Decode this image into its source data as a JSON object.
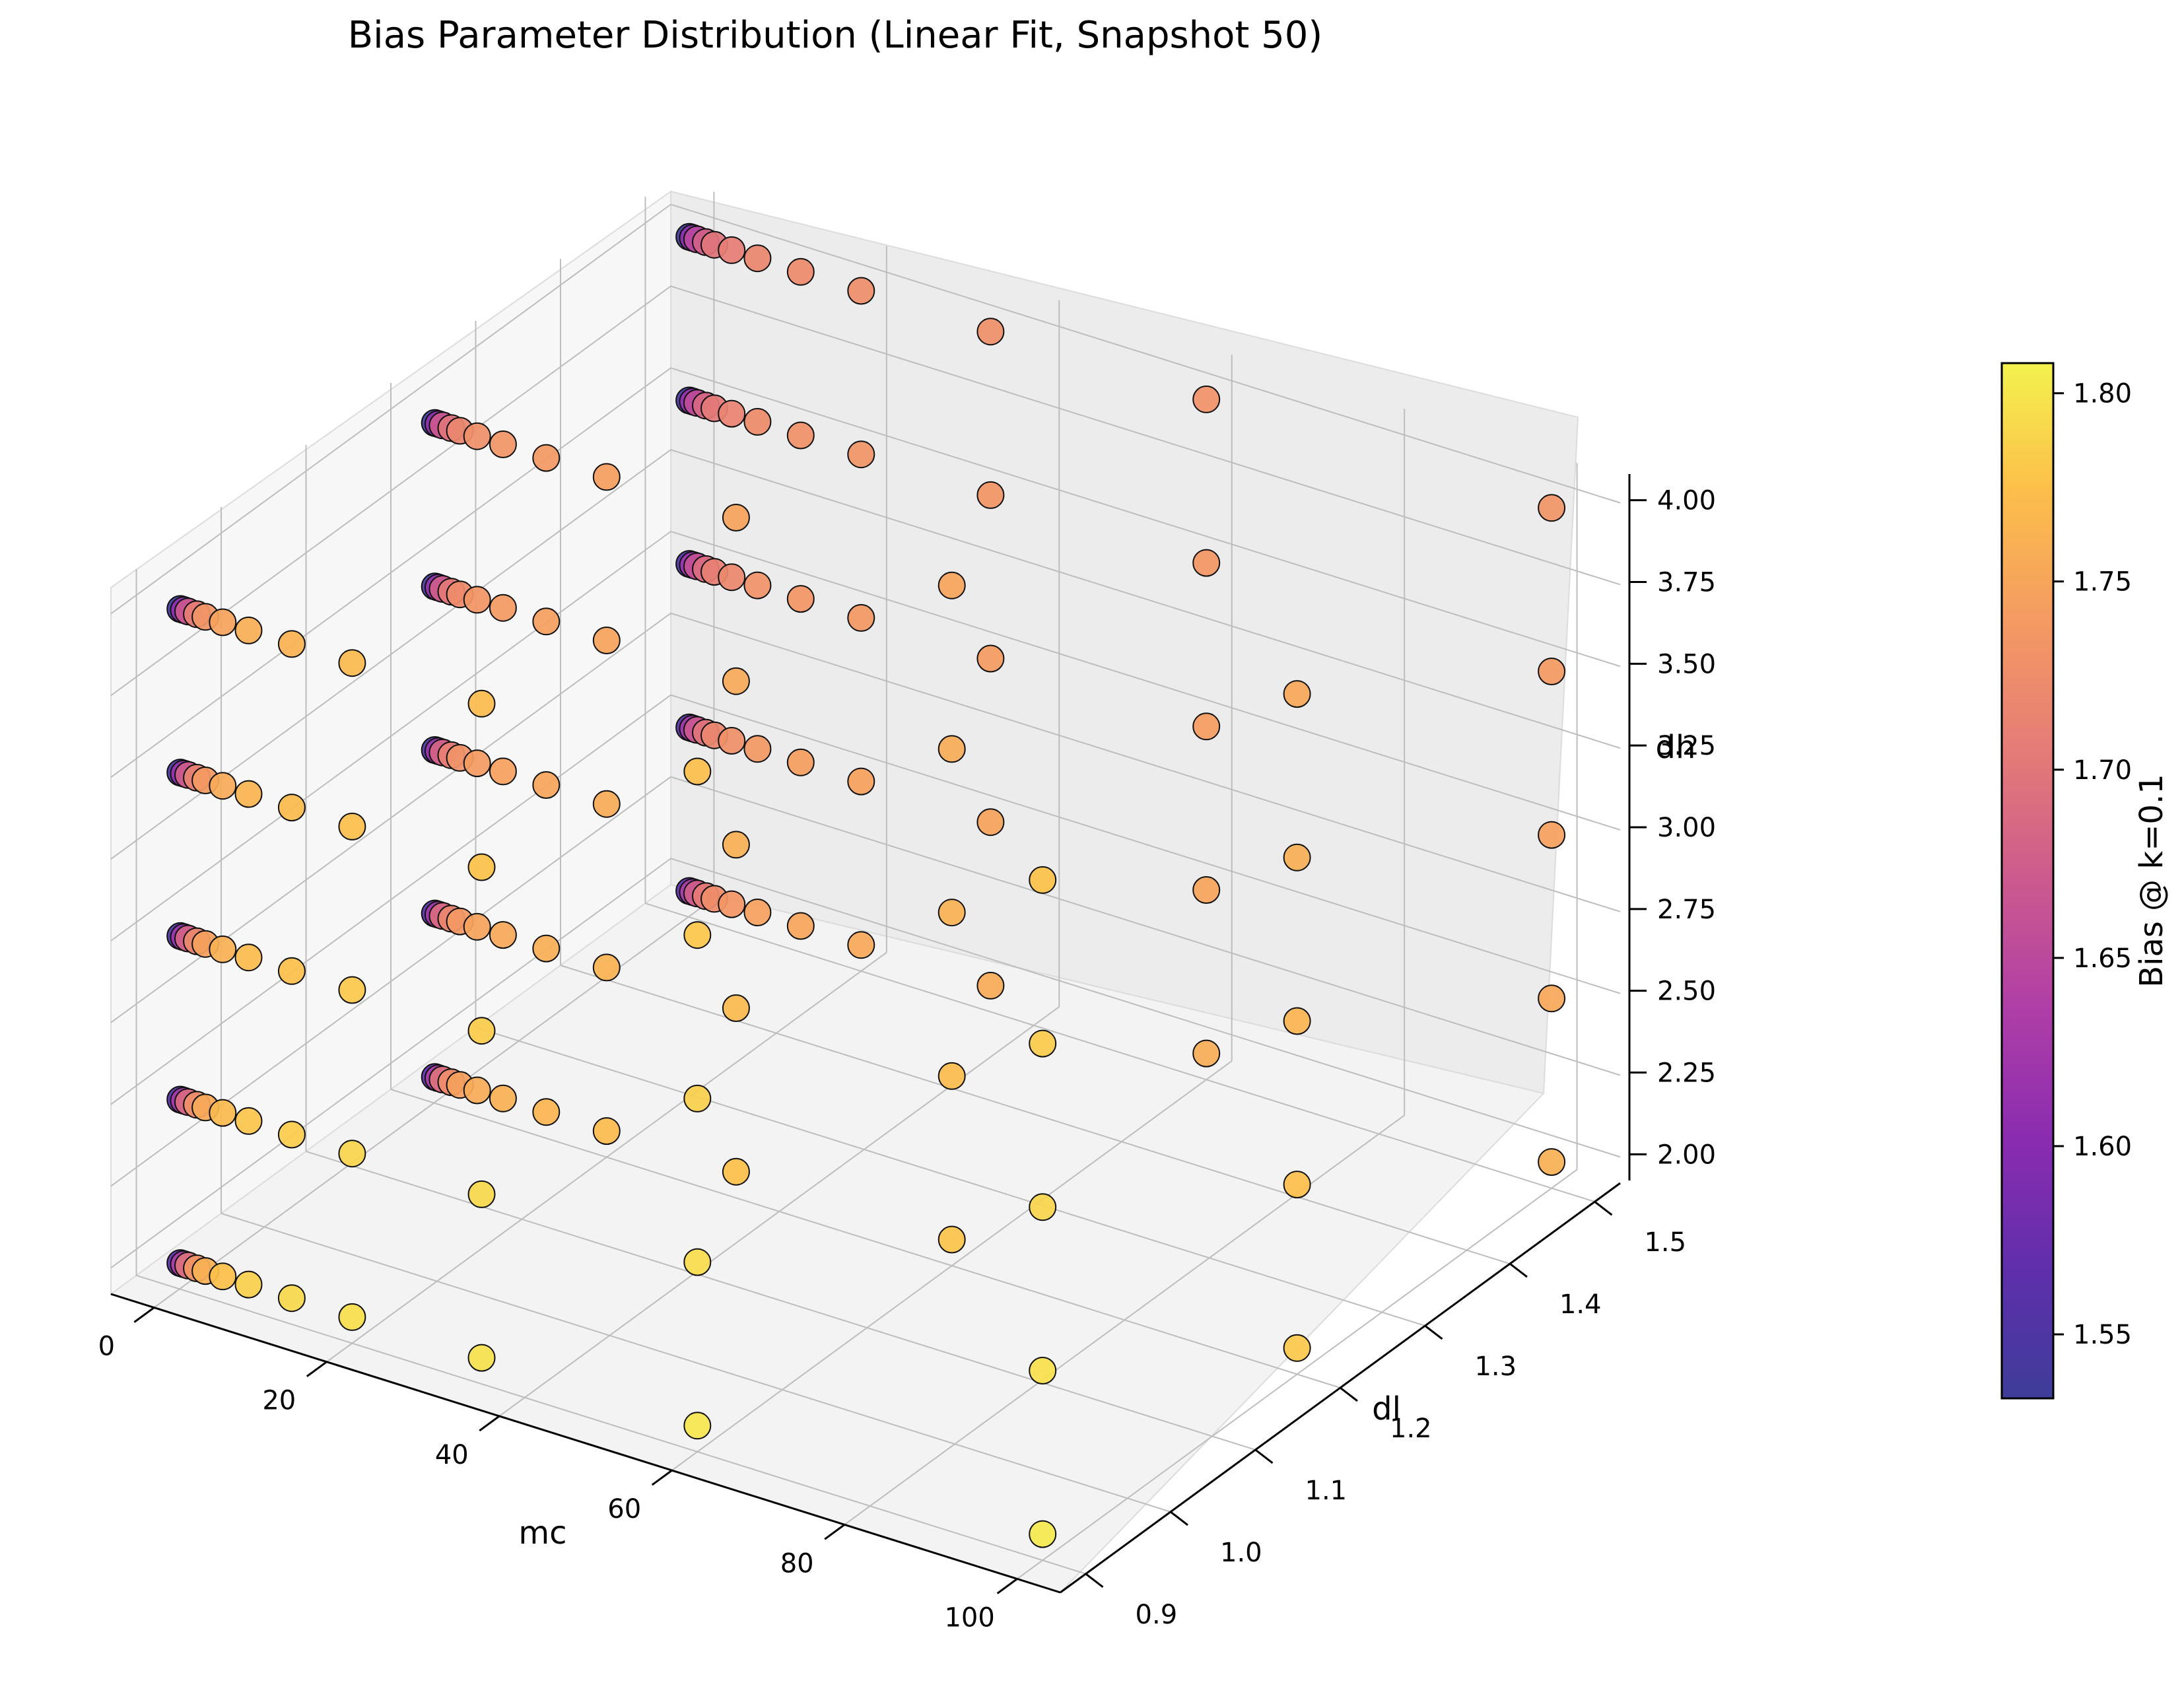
{
  "chart_data": {
    "type": "scatter",
    "title": "Bias Parameter Distribution (Linear Fit, Snapshot 50)",
    "xlabel": "mc",
    "ylabel": "dl",
    "zlabel": "dh",
    "colorbar_label": "Bias @ k=0.1",
    "colormap": "plasma",
    "xlim": [
      -5,
      105
    ],
    "ylim": [
      0.87,
      1.53
    ],
    "zlim": [
      1.92,
      4.08
    ],
    "xticks": [
      "0",
      "20",
      "40",
      "60",
      "80",
      "100"
    ],
    "yticks": [
      "0.9",
      "1.0",
      "1.1",
      "1.2",
      "1.3",
      "1.4",
      "1.5"
    ],
    "zticks": [
      "2.00",
      "2.25",
      "2.50",
      "2.75",
      "3.00",
      "3.25",
      "3.50",
      "3.75",
      "4.00"
    ],
    "colorbar_ticks": [
      "1.55",
      "1.60",
      "1.65",
      "1.70",
      "1.75",
      "1.80"
    ],
    "colorbar_range": [
      1.533,
      1.808
    ],
    "grid": true,
    "mc_values": [
      0.1,
      0.5,
      1,
      2,
      3,
      5,
      8,
      13,
      20,
      35,
      60,
      100
    ],
    "dl_values": [
      0.9,
      1.2,
      1.5
    ],
    "dh_values": [
      2.0,
      2.5,
      3.0,
      3.5,
      4.0
    ],
    "bias_profiles": {
      "dl_0.9": [
        1.55,
        1.62,
        1.68,
        1.72,
        1.745,
        1.76,
        1.77,
        1.775,
        1.78,
        1.782,
        1.785,
        1.788
      ],
      "dl_1.2": [
        1.55,
        1.62,
        1.68,
        1.71,
        1.73,
        1.74,
        1.745,
        1.75,
        1.755,
        1.76,
        1.762,
        1.765
      ],
      "dl_1.5": [
        1.55,
        1.62,
        1.66,
        1.69,
        1.71,
        1.72,
        1.73,
        1.735,
        1.738,
        1.74,
        1.742,
        1.745
      ]
    },
    "dh_bias_offset": [
      0.015,
      0.008,
      0.0,
      -0.006,
      -0.012
    ]
  }
}
